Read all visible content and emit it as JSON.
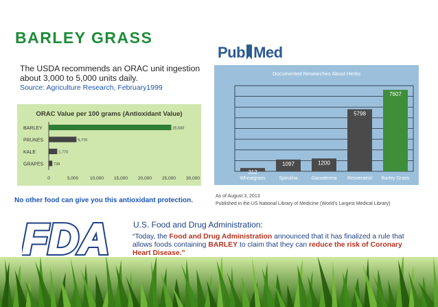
{
  "title": "BARLEY GRASS",
  "usda": {
    "text": "The USDA recommends an ORAC unit ingestion about 3,000 to 5,000 units daily.",
    "source": "Source: Agriculture Research, February1999"
  },
  "chart_data": [
    {
      "type": "bar",
      "orientation": "horizontal",
      "title": "ORAC Value per 100 grams (Antioxidant Value)",
      "categories": [
        "BARLEY",
        "PRUNES",
        "KALE",
        "GRAPES"
      ],
      "values": [
        25500,
        5770,
        1770,
        739
      ],
      "value_labels": [
        "25,500",
        "5,770",
        "1,770",
        "739"
      ],
      "xlim": [
        0,
        30000
      ],
      "xticks": [
        "0",
        "5,000",
        "10,000",
        "15,000",
        "20,000",
        "25,000",
        "30,000"
      ],
      "colors": [
        "#2e7d34",
        "#444444",
        "#444444",
        "#444444"
      ]
    },
    {
      "type": "bar",
      "title": "Documented Researches About Herbs",
      "categories": [
        "Wheatgrass",
        "Spirulina",
        "Ganoderma",
        "Resveratrol",
        "Barley Grass"
      ],
      "values": [
        312,
        1097,
        1200,
        5798,
        7607
      ],
      "value_labels": [
        "312",
        "1097",
        "1200",
        "5798",
        "7607"
      ],
      "ylim": [
        0,
        8000
      ],
      "colors": [
        "#4a4a4a",
        "#4a4a4a",
        "#4a4a4a",
        "#4a4a4a",
        "#3e8e3a"
      ]
    }
  ],
  "no_other": "No other food can give you this antioxidant protection.",
  "pubmed": {
    "pub": "Pub",
    "med": "Med"
  },
  "herbs_notes": {
    "as_of": "As of August 3, 2013",
    "published": "Published in the US National Library of Medicine (World's Largest Medical Library)"
  },
  "fda": {
    "logo": "FDA",
    "heading": "U.S. Food and Drug Administration:",
    "quote": {
      "p1": "“Today, the ",
      "p2": "Food and Drug Administration",
      "p3": " announced that it has finalized a rule that allows foods containing ",
      "p4": "BARLEY",
      "p5": " to claim that they can ",
      "p6": "reduce the risk of Coronary Heart Disease.”"
    }
  },
  "colors": {
    "green_title": "#1f8b3a",
    "blue_text": "#1b56b0",
    "fda_blue": "#1b3f85",
    "accent_red": "#b5321f",
    "orac_bg": "#cfe6ad",
    "herbs_bg": "#9cc0dc"
  }
}
